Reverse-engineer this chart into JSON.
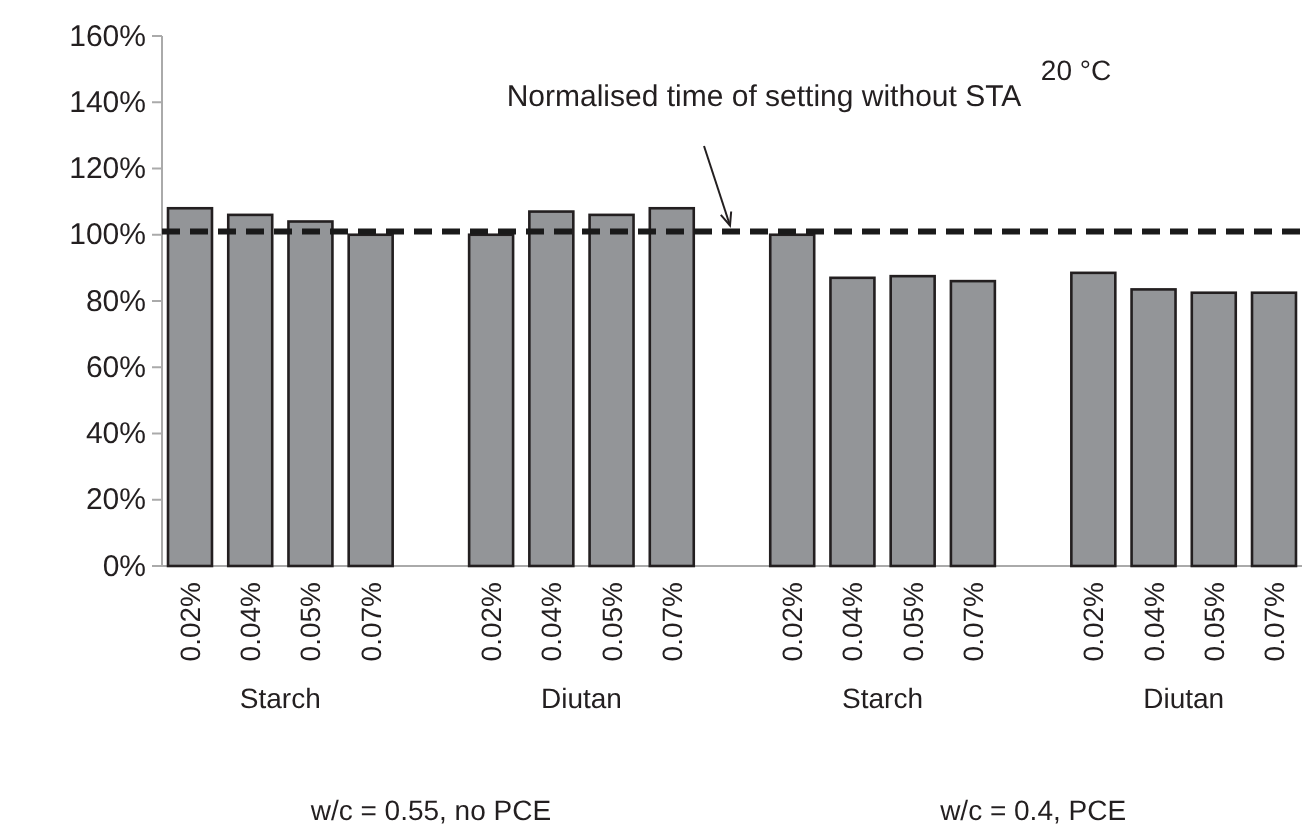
{
  "chart_data": {
    "type": "bar",
    "categories": [
      "0.02%",
      "0.04%",
      "0.05%",
      "0.07%",
      null,
      "0.02%",
      "0.04%",
      "0.05%",
      "0.07%",
      null,
      "0.02%",
      "0.04%",
      "0.05%",
      "0.07%",
      null,
      "0.02%",
      "0.04%",
      "0.05%",
      "0.07%"
    ],
    "values": [
      108,
      106,
      104,
      100,
      null,
      100,
      107,
      106,
      108,
      null,
      100,
      87,
      87.5,
      86,
      null,
      88.5,
      83.5,
      82.5,
      82.5
    ],
    "color": "#939598",
    "ylim": [
      0,
      160
    ],
    "yticks": [
      {
        "value": 0,
        "label": "0%"
      },
      {
        "value": 20,
        "label": "20%"
      },
      {
        "value": 40,
        "label": "40%"
      },
      {
        "value": 60,
        "label": "60%"
      },
      {
        "value": 80,
        "label": "80%"
      },
      {
        "value": 100,
        "label": "100%"
      },
      {
        "value": 120,
        "label": "120%"
      },
      {
        "value": 140,
        "label": "140%"
      },
      {
        "value": 160,
        "label": "160%"
      }
    ],
    "ref_lines": [
      {
        "axis": "y",
        "value": 101,
        "label": "Normalised time of setting without STA",
        "color": "#1a1a1a",
        "line_style": "dashed"
      }
    ],
    "annotations": [
      "20 °C",
      "Starch",
      "Diutan",
      "Starch",
      "Diutan",
      "w/c = 0.55, no PCE",
      "w/c = 0.4, PCE"
    ],
    "grid": false
  }
}
